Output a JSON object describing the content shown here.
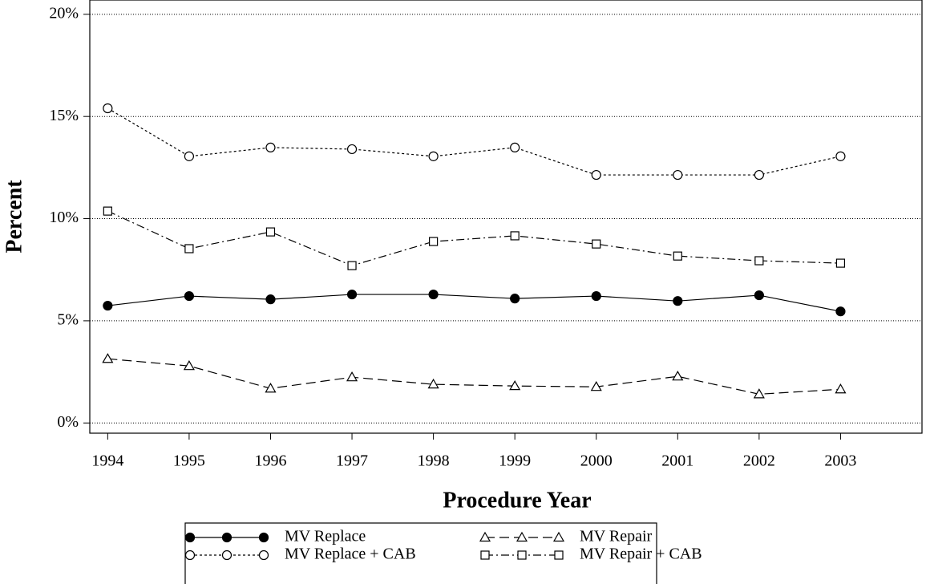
{
  "chart_data": {
    "type": "line",
    "xlabel": "Procedure Year",
    "ylabel": "Percent",
    "x": [
      1994,
      1995,
      1996,
      1997,
      1998,
      1999,
      2000,
      2001,
      2002,
      2003
    ],
    "xlim": [
      1993.78,
      2004.0
    ],
    "xticks": [
      1994,
      1995,
      1996,
      1997,
      1998,
      1999,
      2000,
      2001,
      2002,
      2003
    ],
    "ylim": [
      -0.5,
      20.7
    ],
    "yticks": [
      {
        "value": 0,
        "label": "0%"
      },
      {
        "value": 5,
        "label": "5%"
      },
      {
        "value": 10,
        "label": "10%"
      },
      {
        "value": 15,
        "label": "15%"
      },
      {
        "value": 20,
        "label": "20%"
      }
    ],
    "grid": true,
    "legend": "bottom",
    "series": [
      {
        "name": "MV Replace",
        "color": "#000000",
        "marker": "filled-circle",
        "linestyle": "solid",
        "values": [
          5.74,
          6.21,
          6.05,
          6.29,
          6.29,
          6.09,
          6.21,
          5.97,
          6.25,
          5.46
        ]
      },
      {
        "name": "MV Repair",
        "color": "#000000",
        "marker": "open-triangle",
        "linestyle": "dashed",
        "values": [
          3.14,
          2.79,
          1.69,
          2.24,
          1.89,
          1.81,
          1.77,
          2.28,
          1.41,
          1.65
        ]
      },
      {
        "name": "MV Replace + CAB",
        "color": "#000000",
        "marker": "open-circle",
        "linestyle": "dotted",
        "values": [
          15.4,
          13.05,
          13.48,
          13.4,
          13.05,
          13.48,
          12.14,
          12.14,
          12.14,
          13.05
        ]
      },
      {
        "name": "MV Repair + CAB",
        "color": "#000000",
        "marker": "open-square",
        "linestyle": "dashdot",
        "values": [
          10.37,
          8.53,
          9.35,
          7.7,
          8.88,
          9.16,
          8.76,
          8.17,
          7.94,
          7.82
        ]
      }
    ]
  }
}
